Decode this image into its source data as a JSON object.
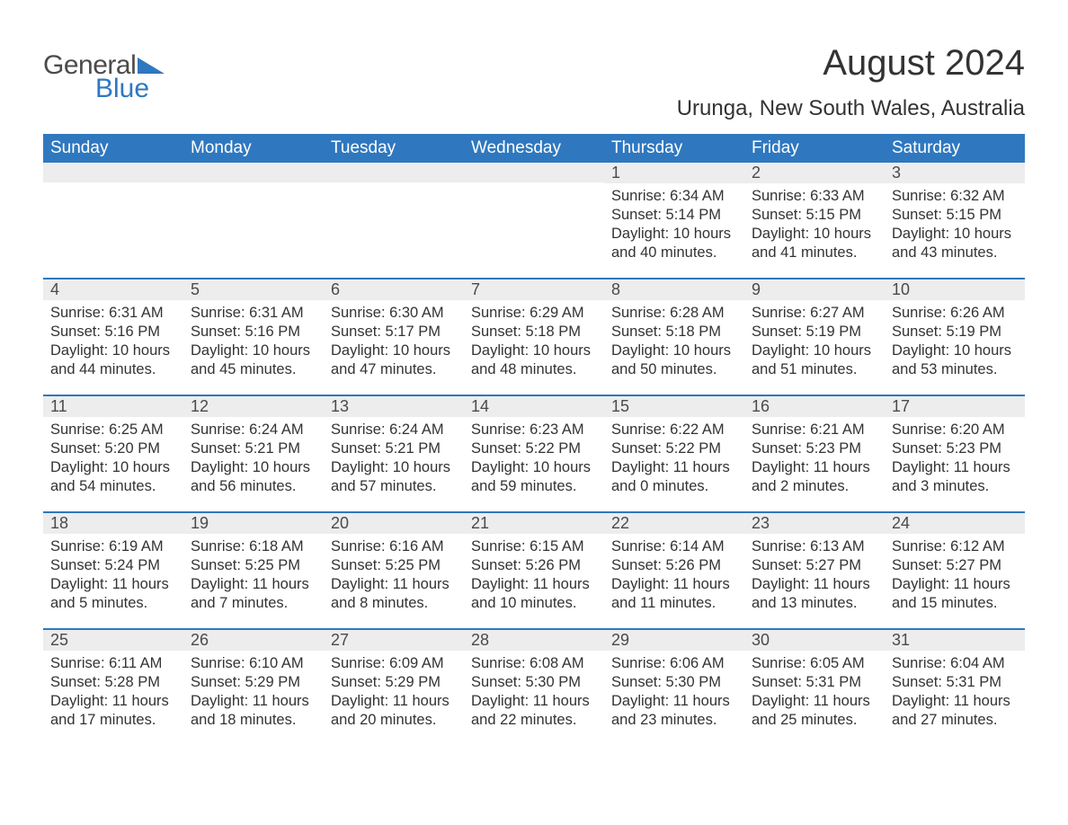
{
  "logo": {
    "line1": "General",
    "line2": "Blue",
    "accent": "#2f78bf"
  },
  "title": "August 2024",
  "location": "Urunga, New South Wales, Australia",
  "colors": {
    "header_bg": "#2f78bf",
    "header_text": "#ffffff",
    "daynum_bg": "#ededed",
    "daynum_text": "#4a4a4a",
    "body_text": "#333333",
    "row_divider": "#2f78bf",
    "page_bg": "#ffffff"
  },
  "typography": {
    "title_fontsize": 40,
    "location_fontsize": 24,
    "dayheader_fontsize": 19,
    "daynum_fontsize": 18,
    "body_fontsize": 16.5
  },
  "day_headers": [
    "Sunday",
    "Monday",
    "Tuesday",
    "Wednesday",
    "Thursday",
    "Friday",
    "Saturday"
  ],
  "weeks": [
    [
      {
        "empty": true
      },
      {
        "empty": true
      },
      {
        "empty": true
      },
      {
        "empty": true
      },
      {
        "num": "1",
        "sunrise": "Sunrise: 6:34 AM",
        "sunset": "Sunset: 5:14 PM",
        "daylight": "Daylight: 10 hours and 40 minutes."
      },
      {
        "num": "2",
        "sunrise": "Sunrise: 6:33 AM",
        "sunset": "Sunset: 5:15 PM",
        "daylight": "Daylight: 10 hours and 41 minutes."
      },
      {
        "num": "3",
        "sunrise": "Sunrise: 6:32 AM",
        "sunset": "Sunset: 5:15 PM",
        "daylight": "Daylight: 10 hours and 43 minutes."
      }
    ],
    [
      {
        "num": "4",
        "sunrise": "Sunrise: 6:31 AM",
        "sunset": "Sunset: 5:16 PM",
        "daylight": "Daylight: 10 hours and 44 minutes."
      },
      {
        "num": "5",
        "sunrise": "Sunrise: 6:31 AM",
        "sunset": "Sunset: 5:16 PM",
        "daylight": "Daylight: 10 hours and 45 minutes."
      },
      {
        "num": "6",
        "sunrise": "Sunrise: 6:30 AM",
        "sunset": "Sunset: 5:17 PM",
        "daylight": "Daylight: 10 hours and 47 minutes."
      },
      {
        "num": "7",
        "sunrise": "Sunrise: 6:29 AM",
        "sunset": "Sunset: 5:18 PM",
        "daylight": "Daylight: 10 hours and 48 minutes."
      },
      {
        "num": "8",
        "sunrise": "Sunrise: 6:28 AM",
        "sunset": "Sunset: 5:18 PM",
        "daylight": "Daylight: 10 hours and 50 minutes."
      },
      {
        "num": "9",
        "sunrise": "Sunrise: 6:27 AM",
        "sunset": "Sunset: 5:19 PM",
        "daylight": "Daylight: 10 hours and 51 minutes."
      },
      {
        "num": "10",
        "sunrise": "Sunrise: 6:26 AM",
        "sunset": "Sunset: 5:19 PM",
        "daylight": "Daylight: 10 hours and 53 minutes."
      }
    ],
    [
      {
        "num": "11",
        "sunrise": "Sunrise: 6:25 AM",
        "sunset": "Sunset: 5:20 PM",
        "daylight": "Daylight: 10 hours and 54 minutes."
      },
      {
        "num": "12",
        "sunrise": "Sunrise: 6:24 AM",
        "sunset": "Sunset: 5:21 PM",
        "daylight": "Daylight: 10 hours and 56 minutes."
      },
      {
        "num": "13",
        "sunrise": "Sunrise: 6:24 AM",
        "sunset": "Sunset: 5:21 PM",
        "daylight": "Daylight: 10 hours and 57 minutes."
      },
      {
        "num": "14",
        "sunrise": "Sunrise: 6:23 AM",
        "sunset": "Sunset: 5:22 PM",
        "daylight": "Daylight: 10 hours and 59 minutes."
      },
      {
        "num": "15",
        "sunrise": "Sunrise: 6:22 AM",
        "sunset": "Sunset: 5:22 PM",
        "daylight": "Daylight: 11 hours and 0 minutes."
      },
      {
        "num": "16",
        "sunrise": "Sunrise: 6:21 AM",
        "sunset": "Sunset: 5:23 PM",
        "daylight": "Daylight: 11 hours and 2 minutes."
      },
      {
        "num": "17",
        "sunrise": "Sunrise: 6:20 AM",
        "sunset": "Sunset: 5:23 PM",
        "daylight": "Daylight: 11 hours and 3 minutes."
      }
    ],
    [
      {
        "num": "18",
        "sunrise": "Sunrise: 6:19 AM",
        "sunset": "Sunset: 5:24 PM",
        "daylight": "Daylight: 11 hours and 5 minutes."
      },
      {
        "num": "19",
        "sunrise": "Sunrise: 6:18 AM",
        "sunset": "Sunset: 5:25 PM",
        "daylight": "Daylight: 11 hours and 7 minutes."
      },
      {
        "num": "20",
        "sunrise": "Sunrise: 6:16 AM",
        "sunset": "Sunset: 5:25 PM",
        "daylight": "Daylight: 11 hours and 8 minutes."
      },
      {
        "num": "21",
        "sunrise": "Sunrise: 6:15 AM",
        "sunset": "Sunset: 5:26 PM",
        "daylight": "Daylight: 11 hours and 10 minutes."
      },
      {
        "num": "22",
        "sunrise": "Sunrise: 6:14 AM",
        "sunset": "Sunset: 5:26 PM",
        "daylight": "Daylight: 11 hours and 11 minutes."
      },
      {
        "num": "23",
        "sunrise": "Sunrise: 6:13 AM",
        "sunset": "Sunset: 5:27 PM",
        "daylight": "Daylight: 11 hours and 13 minutes."
      },
      {
        "num": "24",
        "sunrise": "Sunrise: 6:12 AM",
        "sunset": "Sunset: 5:27 PM",
        "daylight": "Daylight: 11 hours and 15 minutes."
      }
    ],
    [
      {
        "num": "25",
        "sunrise": "Sunrise: 6:11 AM",
        "sunset": "Sunset: 5:28 PM",
        "daylight": "Daylight: 11 hours and 17 minutes."
      },
      {
        "num": "26",
        "sunrise": "Sunrise: 6:10 AM",
        "sunset": "Sunset: 5:29 PM",
        "daylight": "Daylight: 11 hours and 18 minutes."
      },
      {
        "num": "27",
        "sunrise": "Sunrise: 6:09 AM",
        "sunset": "Sunset: 5:29 PM",
        "daylight": "Daylight: 11 hours and 20 minutes."
      },
      {
        "num": "28",
        "sunrise": "Sunrise: 6:08 AM",
        "sunset": "Sunset: 5:30 PM",
        "daylight": "Daylight: 11 hours and 22 minutes."
      },
      {
        "num": "29",
        "sunrise": "Sunrise: 6:06 AM",
        "sunset": "Sunset: 5:30 PM",
        "daylight": "Daylight: 11 hours and 23 minutes."
      },
      {
        "num": "30",
        "sunrise": "Sunrise: 6:05 AM",
        "sunset": "Sunset: 5:31 PM",
        "daylight": "Daylight: 11 hours and 25 minutes."
      },
      {
        "num": "31",
        "sunrise": "Sunrise: 6:04 AM",
        "sunset": "Sunset: 5:31 PM",
        "daylight": "Daylight: 11 hours and 27 minutes."
      }
    ]
  ]
}
